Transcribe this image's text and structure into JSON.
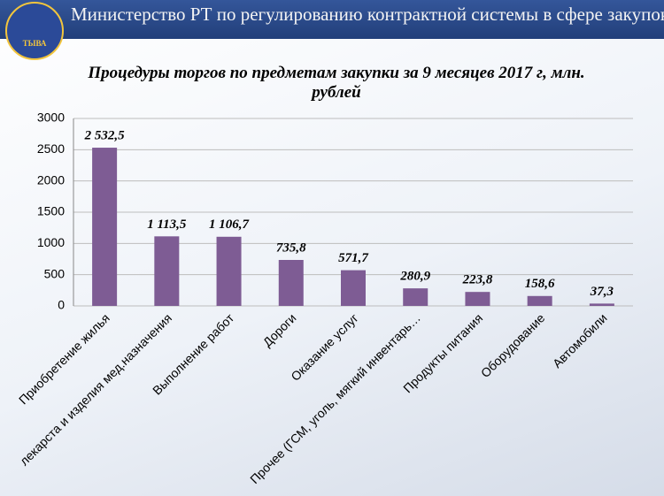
{
  "header": {
    "title": "Министерство РТ по регулированию контрактной системы в сфере закупок",
    "logo_text": "ТЫВА"
  },
  "chart_data": {
    "type": "bar",
    "title": "Процедуры торгов по предметам закупки за 9 месяцев 2017 г, млн. рублей",
    "categories": [
      "Приобретение жилья",
      "лекарста и изделия мед.назначения",
      "Выполнение работ",
      "Дороги",
      "Оказание услуг",
      "Прочее (ГСМ, уголь, мягкий инвентарь…",
      "Продукты питания",
      "Оборудование",
      "Автомобили"
    ],
    "values": [
      2532.5,
      1113.5,
      1106.7,
      735.8,
      571.7,
      280.9,
      223.8,
      158.6,
      37.3
    ],
    "value_labels": [
      "2 532,5",
      "1 113,5",
      "1 106,7",
      "735,8",
      "571,7",
      "280,9",
      "223,8",
      "158,6",
      "37,3"
    ],
    "color": "#7e5c94",
    "ylim": [
      0,
      3000
    ],
    "yticks": [
      0,
      500,
      1000,
      1500,
      2000,
      2500,
      3000
    ],
    "grid": true
  }
}
